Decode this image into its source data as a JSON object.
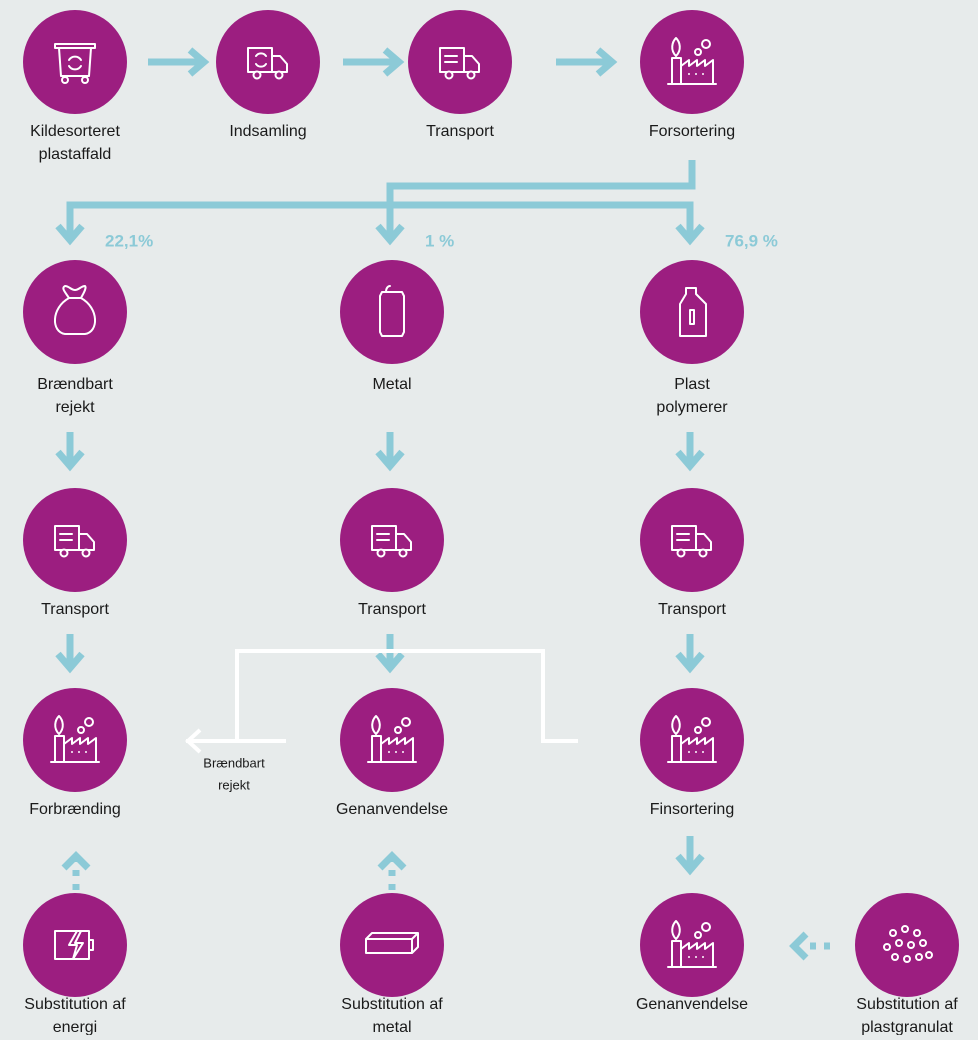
{
  "nodes": [
    {
      "label": [
        "Kildesorteret",
        "plastaffald"
      ]
    },
    {
      "label": [
        "Indsamling"
      ]
    },
    {
      "label": [
        "Transport"
      ]
    },
    {
      "label": [
        "Forsortering"
      ]
    },
    {
      "label": [
        "Brændbart",
        "rejekt"
      ]
    },
    {
      "label": [
        "Metal"
      ]
    },
    {
      "label": [
        "Plast",
        "polymerer"
      ]
    },
    {
      "label": [
        "Transport"
      ]
    },
    {
      "label": [
        "Transport"
      ]
    },
    {
      "label": [
        "Transport"
      ]
    },
    {
      "label": [
        "Forbrænding"
      ]
    },
    {
      "label": [
        "Genanvendelse"
      ]
    },
    {
      "label": [
        "Finsortering"
      ]
    },
    {
      "label": [
        "Substitution af",
        "energi"
      ]
    },
    {
      "label": [
        "Substitution af",
        "metal"
      ]
    },
    {
      "label": [
        "Genanvendelse"
      ]
    },
    {
      "label": [
        "Substitution af",
        "plastgranulat"
      ]
    }
  ],
  "shares": [
    "22,1%",
    "1 %",
    "76,9 %"
  ],
  "side_label": [
    "Brændbart",
    "rejekt"
  ]
}
